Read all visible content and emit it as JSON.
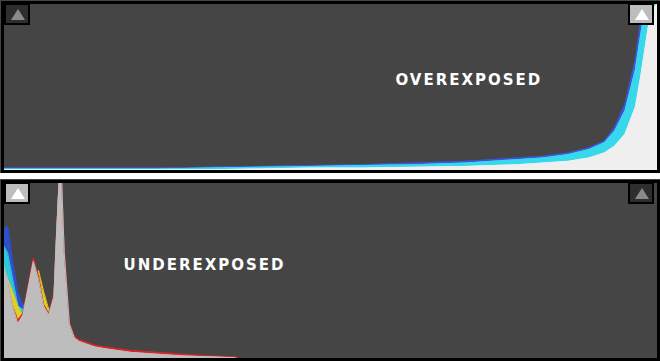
{
  "chart_data": [
    {
      "type": "area",
      "annotations": [
        {
          "text": "OVEREXPOSED"
        }
      ],
      "x": [
        0,
        20,
        40,
        60,
        80,
        100,
        120,
        140,
        160,
        180,
        200,
        210,
        220,
        228,
        234,
        238,
        242,
        246,
        248,
        250,
        252,
        255
      ],
      "series": [
        {
          "color": "#3f55d8",
          "values": [
            2,
            2,
            2,
            2,
            2.5,
            3,
            3.5,
            4,
            5,
            6,
            8,
            9,
            11,
            14,
            18,
            26,
            40,
            66,
            88,
            100,
            100,
            100
          ]
        },
        {
          "color": "#38d8ec",
          "values": [
            1.5,
            1.5,
            1.5,
            1.5,
            2,
            2.5,
            3,
            3.5,
            4,
            5,
            7,
            8,
            10,
            13,
            17,
            24,
            36,
            60,
            80,
            100,
            100,
            100
          ]
        },
        {
          "color": "#efefef",
          "values": [
            1,
            1,
            1,
            1,
            1,
            1.5,
            2,
            2,
            2.5,
            3,
            4,
            5,
            6,
            8,
            11,
            15,
            22,
            38,
            55,
            75,
            95,
            100
          ]
        }
      ],
      "xlim": [
        0,
        255
      ],
      "ylim": [
        0,
        100
      ],
      "tick_labels": false
    },
    {
      "type": "area",
      "annotations": [
        {
          "text": "UNDEREXPOSED"
        }
      ],
      "x": [
        0,
        2,
        4,
        6,
        8,
        10,
        12,
        14,
        16,
        18,
        20,
        21,
        22,
        23,
        24,
        26,
        28,
        30,
        32,
        34,
        36,
        40,
        50,
        60,
        70,
        80,
        90,
        93,
        100,
        255
      ],
      "series": [
        {
          "color": "#2f4fd0",
          "values": [
            72,
            75,
            55,
            38,
            30,
            35,
            48,
            40,
            28,
            24,
            33,
            66,
            100,
            100,
            58,
            19,
            11,
            9,
            8,
            7,
            6,
            5,
            3,
            2,
            1.5,
            1,
            0.5,
            0,
            0,
            0
          ]
        },
        {
          "color": "#2ec8d8",
          "values": [
            65,
            60,
            45,
            30,
            28,
            38,
            52,
            42,
            29,
            24,
            34,
            68,
            100,
            100,
            59,
            19,
            11,
            9,
            8,
            7,
            6,
            5,
            3,
            2,
            1.5,
            1,
            0.5,
            0,
            0,
            0
          ]
        },
        {
          "color": "#e0d21c",
          "values": [
            50,
            45,
            38,
            30,
            24,
            28,
            35,
            50,
            38,
            28,
            30,
            60,
            95,
            95,
            50,
            18,
            11,
            9,
            8,
            7,
            6,
            5,
            3,
            2,
            1.5,
            1,
            0.5,
            0,
            0,
            0
          ]
        },
        {
          "color": "#d8262a",
          "values": [
            50,
            42,
            30,
            22,
            26,
            42,
            57,
            47,
            31,
            26,
            37,
            72,
            100,
            100,
            62,
            21,
            13,
            11,
            10,
            9,
            8,
            7,
            5,
            4,
            3,
            2,
            1.5,
            0,
            0,
            0
          ]
        },
        {
          "color": "#bdbdbd",
          "values": [
            55,
            45,
            30,
            20,
            25,
            40,
            55,
            45,
            30,
            25,
            35,
            70,
            100,
            100,
            60,
            20,
            12,
            10,
            9,
            8,
            7,
            6,
            4,
            3,
            2,
            1.5,
            1,
            0,
            0,
            0
          ]
        }
      ],
      "xlim": [
        0,
        255
      ],
      "ylim": [
        0,
        100
      ],
      "tick_labels": false
    }
  ]
}
